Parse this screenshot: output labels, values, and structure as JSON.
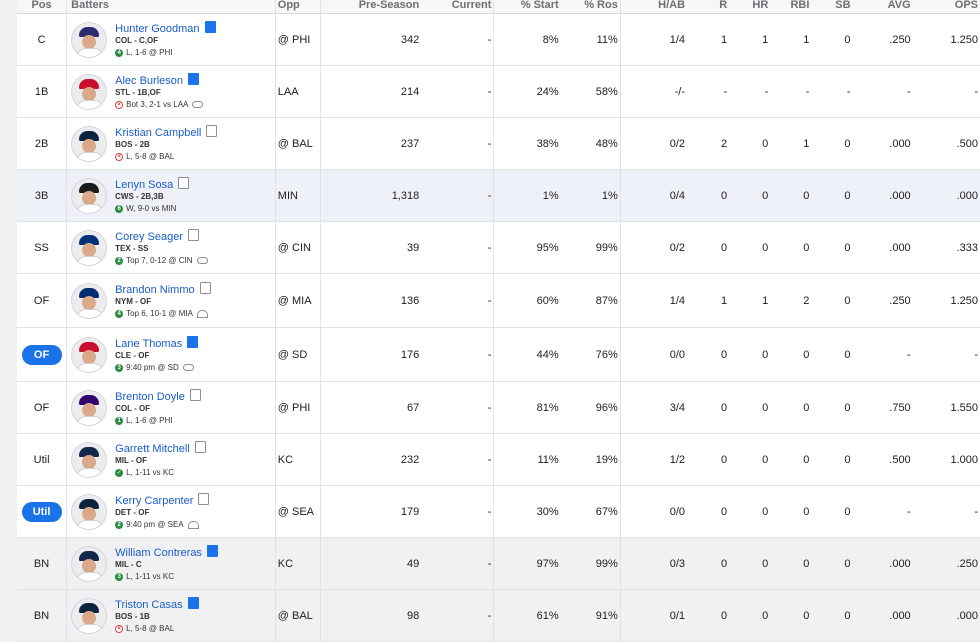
{
  "headers": [
    "Pos",
    "Batters",
    "Opp",
    "Pre-Season",
    "Current",
    "% Start",
    "% Ros",
    "H/AB",
    "R",
    "HR",
    "RBI",
    "SB",
    "AVG",
    "OPS"
  ],
  "rows": [
    {
      "pos": "C",
      "pos_pill": false,
      "name": "Hunter Goodman",
      "note": "blue",
      "team": "COL - C,OF",
      "status": "4",
      "status_type": "num",
      "game": "L, 1-6 @ PHI",
      "weather": "",
      "opp": "@ PHI",
      "pre": "342",
      "cur": "-",
      "start": "8%",
      "ros": "11%",
      "hab": "1/4",
      "r": "1",
      "hr": "1",
      "rbi": "1",
      "sb": "0",
      "avg": ".250",
      "ops": "1.250",
      "style": "",
      "cap": "#2b2b6e"
    },
    {
      "pos": "1B",
      "pos_pill": false,
      "name": "Alec Burleson",
      "note": "blue",
      "team": "STL - 1B,OF",
      "status": "x",
      "status_type": "x",
      "game": "Bot 3, 2-1 vs LAA",
      "weather": "cloud",
      "opp": "LAA",
      "pre": "214",
      "cur": "-",
      "start": "24%",
      "ros": "58%",
      "hab": "-/-",
      "r": "-",
      "hr": "-",
      "rbi": "-",
      "sb": "-",
      "avg": "-",
      "ops": "-",
      "style": "",
      "cap": "#c8102e"
    },
    {
      "pos": "2B",
      "pos_pill": false,
      "name": "Kristian Campbell",
      "note": "grey",
      "team": "BOS - 2B",
      "status": "x",
      "status_type": "x",
      "game": "L, 5-8 @ BAL",
      "weather": "",
      "opp": "@ BAL",
      "pre": "237",
      "cur": "-",
      "start": "38%",
      "ros": "48%",
      "hab": "0/2",
      "r": "2",
      "hr": "0",
      "rbi": "1",
      "sb": "0",
      "avg": ".000",
      "ops": ".500",
      "style": "",
      "cap": "#0c2340"
    },
    {
      "pos": "3B",
      "pos_pill": false,
      "name": "Lenyn Sosa",
      "note": "grey",
      "team": "CWS - 2B,3B",
      "status": "6",
      "status_type": "num",
      "game": "W, 9-0 vs MIN",
      "weather": "",
      "opp": "MIN",
      "pre": "1,318",
      "cur": "-",
      "start": "1%",
      "ros": "1%",
      "hab": "0/4",
      "r": "0",
      "hr": "0",
      "rbi": "0",
      "sb": "0",
      "avg": ".000",
      "ops": ".000",
      "style": "hl",
      "cap": "#1b1b1b"
    },
    {
      "pos": "SS",
      "pos_pill": false,
      "name": "Corey Seager",
      "note": "grey",
      "team": "TEX - SS",
      "status": "2",
      "status_type": "num",
      "game": "Top 7, 0-12 @ CIN",
      "weather": "cloud",
      "opp": "@ CIN",
      "pre": "39",
      "cur": "-",
      "start": "95%",
      "ros": "99%",
      "hab": "0/2",
      "r": "0",
      "hr": "0",
      "rbi": "0",
      "sb": "0",
      "avg": ".000",
      "ops": ".333",
      "style": "",
      "cap": "#003278"
    },
    {
      "pos": "OF",
      "pos_pill": false,
      "name": "Brandon Nimmo",
      "note": "grey",
      "team": "NYM - OF",
      "status": "4",
      "status_type": "num",
      "game": "Top 6, 10-1 @ MIA",
      "weather": "dome",
      "opp": "@ MIA",
      "pre": "136",
      "cur": "-",
      "start": "60%",
      "ros": "87%",
      "hab": "1/4",
      "r": "1",
      "hr": "1",
      "rbi": "2",
      "sb": "0",
      "avg": ".250",
      "ops": "1.250",
      "style": "tall",
      "cap": "#002d72"
    },
    {
      "pos": "OF",
      "pos_pill": true,
      "name": "Lane Thomas",
      "note": "blue",
      "team": "CLE - OF",
      "status": "3",
      "status_type": "num",
      "game": "9:40 pm @ SD",
      "weather": "cloud",
      "opp": "@ SD",
      "pre": "176",
      "cur": "-",
      "start": "44%",
      "ros": "76%",
      "hab": "0/0",
      "r": "0",
      "hr": "0",
      "rbi": "0",
      "sb": "0",
      "avg": "-",
      "ops": "-",
      "style": "tall",
      "cap": "#c8102e"
    },
    {
      "pos": "OF",
      "pos_pill": false,
      "name": "Brenton Doyle",
      "note": "grey",
      "team": "COL - OF",
      "status": "1",
      "status_type": "num",
      "game": "L, 1-6 @ PHI",
      "weather": "",
      "opp": "@ PHI",
      "pre": "67",
      "cur": "-",
      "start": "81%",
      "ros": "96%",
      "hab": "3/4",
      "r": "0",
      "hr": "0",
      "rbi": "0",
      "sb": "0",
      "avg": ".750",
      "ops": "1.550",
      "style": "",
      "cap": "#33006f"
    },
    {
      "pos": "Util",
      "pos_pill": false,
      "name": "Garrett Mitchell",
      "note": "grey",
      "team": "MIL - OF",
      "status": "v",
      "status_type": "num",
      "game": "L, 1-11 vs KC",
      "weather": "",
      "opp": "KC",
      "pre": "232",
      "cur": "-",
      "start": "11%",
      "ros": "19%",
      "hab": "1/2",
      "r": "0",
      "hr": "0",
      "rbi": "0",
      "sb": "0",
      "avg": ".500",
      "ops": "1.000",
      "style": "",
      "cap": "#12284b"
    },
    {
      "pos": "Util",
      "pos_pill": true,
      "name": "Kerry Carpenter",
      "note": "grey",
      "team": "DET - OF",
      "status": "2",
      "status_type": "num",
      "game": "9:40 pm @ SEA",
      "weather": "dome",
      "opp": "@ SEA",
      "pre": "179",
      "cur": "-",
      "start": "30%",
      "ros": "67%",
      "hab": "0/0",
      "r": "0",
      "hr": "0",
      "rbi": "0",
      "sb": "0",
      "avg": "-",
      "ops": "-",
      "style": "",
      "cap": "#0c2340"
    },
    {
      "pos": "BN",
      "pos_pill": false,
      "name": "William Contreras",
      "note": "blue",
      "team": "MIL - C",
      "status": "3",
      "status_type": "num",
      "game": "L, 1-11 vs KC",
      "weather": "",
      "opp": "KC",
      "pre": "49",
      "cur": "-",
      "start": "97%",
      "ros": "99%",
      "hab": "0/3",
      "r": "0",
      "hr": "0",
      "rbi": "0",
      "sb": "0",
      "avg": ".000",
      "ops": ".250",
      "style": "bn",
      "cap": "#12284b"
    },
    {
      "pos": "BN",
      "pos_pill": false,
      "name": "Triston Casas",
      "note": "blue",
      "team": "BOS - 1B",
      "status": "x",
      "status_type": "x",
      "game": "L, 5-8 @ BAL",
      "weather": "",
      "opp": "@ BAL",
      "pre": "98",
      "cur": "-",
      "start": "61%",
      "ros": "91%",
      "hab": "0/1",
      "r": "0",
      "hr": "0",
      "rbi": "0",
      "sb": "0",
      "avg": ".000",
      "ops": ".000",
      "style": "bn",
      "cap": "#0c2340"
    }
  ]
}
